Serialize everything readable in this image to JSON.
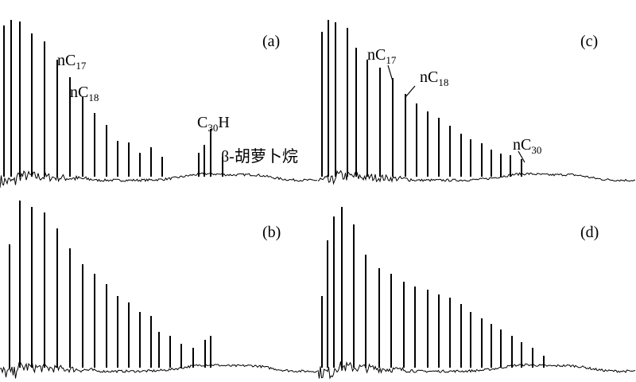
{
  "chart_data": [
    {
      "type": "peaks",
      "title": "(a)",
      "xlim": [
        0,
        400
      ],
      "ylim": [
        0,
        222
      ],
      "x": [
        5,
        14,
        25,
        40,
        56,
        72,
        88,
        104,
        119,
        134,
        148,
        162,
        176,
        190,
        204,
        250,
        257,
        265,
        280
      ],
      "values": [
        190,
        197,
        195,
        180,
        170,
        147,
        125,
        100,
        80,
        65,
        45,
        43,
        30,
        37,
        25,
        30,
        40,
        60,
        25
      ],
      "annotations": [
        {
          "parts": [
            "nC",
            "17"
          ]
        },
        {
          "parts": [
            "nC",
            "18"
          ]
        },
        {
          "parts": [
            "C",
            "30",
            "H"
          ]
        },
        {
          "parts": [
            "β-胡萝卜烷"
          ]
        }
      ]
    },
    {
      "type": "peaks",
      "title": "(c)",
      "xlim": [
        0,
        400
      ],
      "ylim": [
        0,
        222
      ],
      "x": [
        5,
        13,
        22,
        37,
        48,
        62,
        78,
        94,
        110,
        124,
        138,
        152,
        166,
        180,
        192,
        206,
        218,
        230,
        242,
        256
      ],
      "values": [
        182,
        197,
        194,
        187,
        162,
        147,
        137,
        124,
        104,
        92,
        82,
        74,
        64,
        54,
        47,
        42,
        34,
        29,
        27,
        22
      ],
      "annotations": [
        {
          "parts": [
            "nC",
            "17"
          ]
        },
        {
          "parts": [
            "nC",
            "18"
          ]
        },
        {
          "parts": [
            "nC",
            "30"
          ]
        }
      ]
    },
    {
      "type": "peaks",
      "title": "(b)",
      "xlim": [
        0,
        400
      ],
      "ylim": [
        0,
        222
      ],
      "x": [
        12,
        25,
        40,
        56,
        72,
        88,
        104,
        119,
        134,
        148,
        162,
        176,
        190,
        200,
        214,
        228,
        243,
        258,
        265
      ],
      "values": [
        155,
        210,
        202,
        195,
        175,
        150,
        130,
        118,
        105,
        90,
        82,
        70,
        65,
        45,
        40,
        30,
        25,
        35,
        40
      ],
      "annotations": []
    },
    {
      "type": "peaks",
      "title": "(d)",
      "xlim": [
        0,
        400
      ],
      "ylim": [
        0,
        222
      ],
      "x": [
        5,
        12,
        20,
        30,
        45,
        60,
        77,
        92,
        108,
        122,
        138,
        152,
        166,
        180,
        192,
        206,
        218,
        230,
        244,
        256,
        270,
        284
      ],
      "values": [
        90,
        160,
        190,
        202,
        180,
        142,
        125,
        118,
        108,
        102,
        98,
        92,
        88,
        80,
        70,
        62,
        55,
        48,
        40,
        32,
        25,
        15
      ],
      "annotations": []
    }
  ]
}
